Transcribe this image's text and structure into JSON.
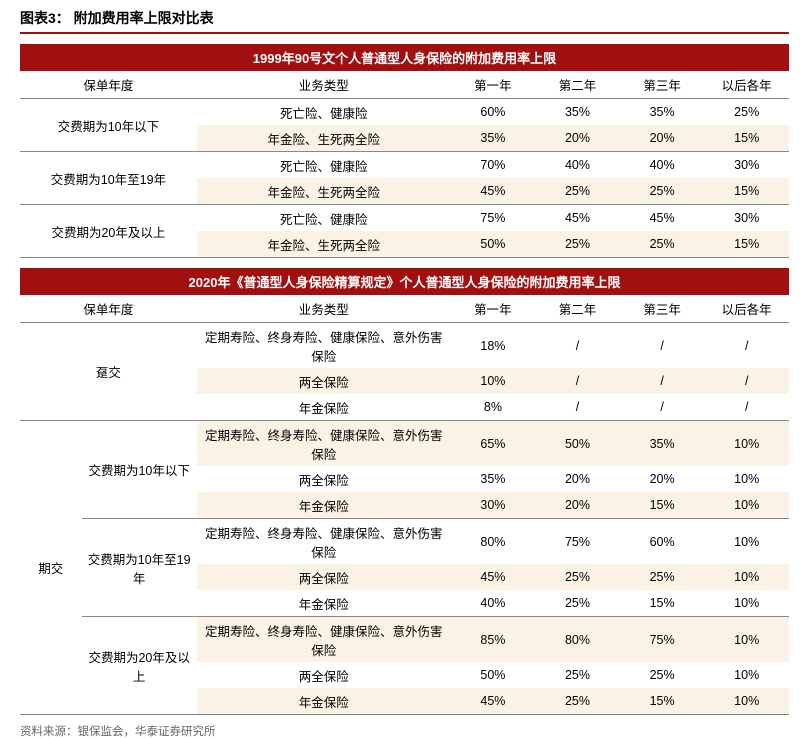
{
  "title": "图表3：  附加费用率上限对比表",
  "source": "资料来源：银保监会，华泰证券研究所",
  "colors": {
    "accent": "#a01010",
    "stripe_odd": "#faf3e5",
    "stripe_even": "#ffffff",
    "border": "#888888"
  },
  "headers": {
    "policy_year": "保单年度",
    "business_type": "业务类型",
    "year1": "第一年",
    "year2": "第二年",
    "year3": "第三年",
    "year_later": "以后各年"
  },
  "table1": {
    "banner": "1999年90号文个人普通型人身保险的附加费用率上限",
    "groups": [
      {
        "policy": "交费期为10年以下",
        "rows": [
          {
            "biz": "死亡险、健康险",
            "y1": "60%",
            "y2": "35%",
            "y3": "35%",
            "y4": "25%"
          },
          {
            "biz": "年金险、生死两全险",
            "y1": "35%",
            "y2": "20%",
            "y3": "20%",
            "y4": "15%"
          }
        ]
      },
      {
        "policy": "交费期为10年至19年",
        "rows": [
          {
            "biz": "死亡险、健康险",
            "y1": "70%",
            "y2": "40%",
            "y3": "40%",
            "y4": "30%"
          },
          {
            "biz": "年金险、生死两全险",
            "y1": "45%",
            "y2": "25%",
            "y3": "25%",
            "y4": "15%"
          }
        ]
      },
      {
        "policy": "交费期为20年及以上",
        "rows": [
          {
            "biz": "死亡险、健康险",
            "y1": "75%",
            "y2": "45%",
            "y3": "45%",
            "y4": "30%"
          },
          {
            "biz": "年金险、生死两全险",
            "y1": "50%",
            "y2": "25%",
            "y3": "25%",
            "y4": "15%"
          }
        ]
      }
    ]
  },
  "table2": {
    "banner": "2020年《普通型人身保险精算规定》个人普通型人身保险的附加费用率上限",
    "sections": [
      {
        "pay_type": "趸交",
        "groups": [
          {
            "policy": "",
            "rows": [
              {
                "biz": "定期寿险、终身寿险、健康保险、意外伤害保险",
                "y1": "18%",
                "y2": "/",
                "y3": "/",
                "y4": "/"
              },
              {
                "biz": "两全保险",
                "y1": "10%",
                "y2": "/",
                "y3": "/",
                "y4": "/"
              },
              {
                "biz": "年金保险",
                "y1": "8%",
                "y2": "/",
                "y3": "/",
                "y4": "/"
              }
            ]
          }
        ]
      },
      {
        "pay_type": "期交",
        "groups": [
          {
            "policy": "交费期为10年以下",
            "rows": [
              {
                "biz": "定期寿险、终身寿险、健康保险、意外伤害保险",
                "y1": "65%",
                "y2": "50%",
                "y3": "35%",
                "y4": "10%"
              },
              {
                "biz": "两全保险",
                "y1": "35%",
                "y2": "20%",
                "y3": "20%",
                "y4": "10%"
              },
              {
                "biz": "年金保险",
                "y1": "30%",
                "y2": "20%",
                "y3": "15%",
                "y4": "10%"
              }
            ]
          },
          {
            "policy": "交费期为10年至19年",
            "rows": [
              {
                "biz": "定期寿险、终身寿险、健康保险、意外伤害保险",
                "y1": "80%",
                "y2": "75%",
                "y3": "60%",
                "y4": "10%"
              },
              {
                "biz": "两全保险",
                "y1": "45%",
                "y2": "25%",
                "y3": "25%",
                "y4": "10%"
              },
              {
                "biz": "年金保险",
                "y1": "40%",
                "y2": "25%",
                "y3": "15%",
                "y4": "10%"
              }
            ]
          },
          {
            "policy": "交费期为20年及以上",
            "rows": [
              {
                "biz": "定期寿险、终身寿险、健康保险、意外伤害保险",
                "y1": "85%",
                "y2": "80%",
                "y3": "75%",
                "y4": "10%"
              },
              {
                "biz": "两全保险",
                "y1": "50%",
                "y2": "25%",
                "y3": "25%",
                "y4": "10%"
              },
              {
                "biz": "年金保险",
                "y1": "45%",
                "y2": "25%",
                "y3": "15%",
                "y4": "10%"
              }
            ]
          }
        ]
      }
    ]
  }
}
